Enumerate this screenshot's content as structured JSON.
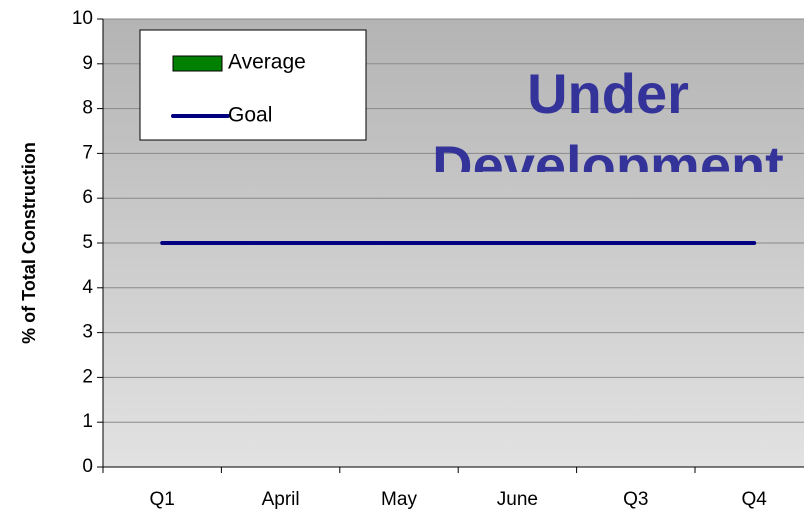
{
  "chart_data": {
    "type": "line",
    "ylabel": "% of Total Construction",
    "categories": [
      "Q1",
      "April",
      "May",
      "June",
      "Q3",
      "Q4"
    ],
    "series": [
      {
        "name": "Average",
        "type": "bar",
        "color": "#008000",
        "values": [
          null,
          null,
          null,
          null,
          null,
          null
        ]
      },
      {
        "name": "Goal",
        "type": "line",
        "color": "#000080",
        "values": [
          5,
          5,
          5,
          5,
          5,
          5
        ]
      }
    ],
    "annotation": [
      "Under",
      "Development"
    ],
    "ylim": [
      0,
      10
    ],
    "yticks": [
      0,
      1,
      2,
      3,
      4,
      5,
      6,
      7,
      8,
      9,
      10
    ],
    "grid": true,
    "legend": "upper left"
  }
}
